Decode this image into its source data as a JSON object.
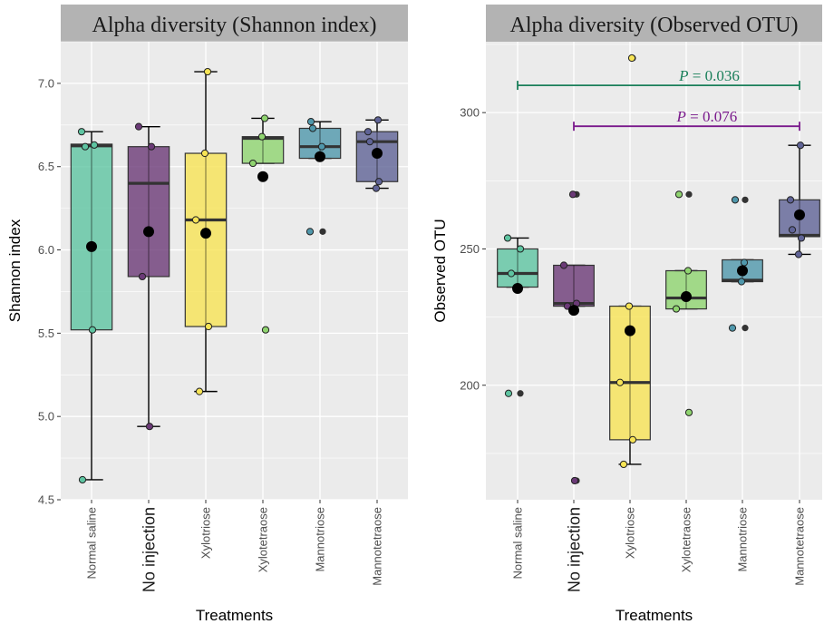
{
  "chart_data": [
    {
      "type": "box",
      "title": "Alpha diversity (Shannon index)",
      "xlabel": "Treatments",
      "ylabel": "Shannon index",
      "ylim": [
        4.5,
        7.25
      ],
      "yticks": [
        4.5,
        5.0,
        5.5,
        6.0,
        6.5,
        7.0
      ],
      "ytick_labels": [
        "4.5",
        "5.0",
        "5.5",
        "6.0",
        "6.5",
        "7.0"
      ],
      "categories": [
        "Normal saline",
        "No injection",
        "Xylotriose",
        "Xylotetraose",
        "Mannotriose",
        "Mannotetraose"
      ],
      "colors": [
        "#5ec4a1",
        "#6b3a77",
        "#f7e455",
        "#8fd46f",
        "#4f97ab",
        "#5f6396"
      ],
      "groups": [
        {
          "q1": 5.52,
          "median": 6.625,
          "q3": 6.635,
          "whisker_low": 4.62,
          "whisker_high": 6.71,
          "mean": 6.02,
          "points": [
            4.62,
            5.52,
            6.62,
            6.63,
            6.71
          ],
          "outliers": []
        },
        {
          "q1": 5.84,
          "median": 6.4,
          "q3": 6.62,
          "whisker_low": 4.94,
          "whisker_high": 6.74,
          "mean": 6.11,
          "points": [
            4.94,
            5.84,
            6.62,
            6.74
          ],
          "outliers": []
        },
        {
          "q1": 5.54,
          "median": 6.18,
          "q3": 6.58,
          "whisker_low": 5.15,
          "whisker_high": 7.07,
          "mean": 6.1,
          "points": [
            5.15,
            5.54,
            6.18,
            6.58,
            7.07
          ],
          "outliers": []
        },
        {
          "q1": 6.52,
          "median": 6.67,
          "q3": 6.68,
          "whisker_low": 6.52,
          "whisker_high": 6.79,
          "mean": 6.44,
          "points": [
            5.52,
            6.52,
            6.68,
            6.79
          ],
          "outliers": [
            5.52
          ]
        },
        {
          "q1": 6.55,
          "median": 6.62,
          "q3": 6.73,
          "whisker_low": 6.55,
          "whisker_high": 6.77,
          "mean": 6.56,
          "points": [
            6.11,
            6.55,
            6.62,
            6.73,
            6.77
          ],
          "outliers": [
            6.11
          ]
        },
        {
          "q1": 6.41,
          "median": 6.65,
          "q3": 6.71,
          "whisker_low": 6.37,
          "whisker_high": 6.78,
          "mean": 6.58,
          "points": [
            6.37,
            6.41,
            6.65,
            6.71,
            6.78
          ],
          "outliers": []
        }
      ],
      "annotations": []
    },
    {
      "type": "box",
      "title": "Alpha diversity (Observed OTU)",
      "xlabel": "Treatments",
      "ylabel": "Observed OTU",
      "ylim": [
        158,
        326
      ],
      "yticks": [
        200,
        250,
        300
      ],
      "ytick_labels": [
        "200",
        "250",
        "300"
      ],
      "categories": [
        "Normal saline",
        "No injection",
        "Xylotriose",
        "Xylotetraose",
        "Mannotriose",
        "Mannotetraose"
      ],
      "colors": [
        "#5ec4a1",
        "#6b3a77",
        "#f7e455",
        "#8fd46f",
        "#4f97ab",
        "#5f6396"
      ],
      "groups": [
        {
          "q1": 236,
          "median": 241,
          "q3": 250,
          "whisker_low": 236,
          "whisker_high": 254,
          "mean": 235.5,
          "points": [
            197,
            236,
            241,
            250,
            254
          ],
          "outliers": [
            197
          ]
        },
        {
          "q1": 229,
          "median": 230,
          "q3": 244,
          "whisker_low": 229,
          "whisker_high": 244,
          "mean": 227.5,
          "points": [
            165,
            229,
            230,
            244,
            270
          ],
          "outliers": [
            165,
            270
          ]
        },
        {
          "q1": 180,
          "median": 201,
          "q3": 229,
          "whisker_low": 171,
          "whisker_high": 229,
          "mean": 220,
          "points": [
            171,
            180,
            201,
            229,
            320
          ],
          "outliers": [
            320
          ]
        },
        {
          "q1": 228,
          "median": 232,
          "q3": 242,
          "whisker_low": 228,
          "whisker_high": 242,
          "mean": 232.5,
          "points": [
            190,
            228,
            232,
            242,
            270
          ],
          "outliers": [
            190,
            270
          ]
        },
        {
          "q1": 238,
          "median": 238.5,
          "q3": 246,
          "whisker_low": 238,
          "whisker_high": 246,
          "mean": 242,
          "points": [
            221,
            238,
            245,
            268
          ],
          "outliers": [
            221,
            268
          ]
        },
        {
          "q1": 254.5,
          "median": 255,
          "q3": 268,
          "whisker_low": 248,
          "whisker_high": 288,
          "mean": 262.5,
          "points": [
            248,
            254,
            257,
            268,
            288
          ],
          "outliers": []
        }
      ],
      "annotations": [
        {
          "from": 0,
          "to": 5,
          "y": 310,
          "italic": "P",
          "label": " = 0.036",
          "color": "#1a7f5a"
        },
        {
          "from": 1,
          "to": 5,
          "y": 295,
          "italic": "P",
          "label": " = 0.076",
          "color": "#7a1a8c"
        }
      ]
    }
  ]
}
